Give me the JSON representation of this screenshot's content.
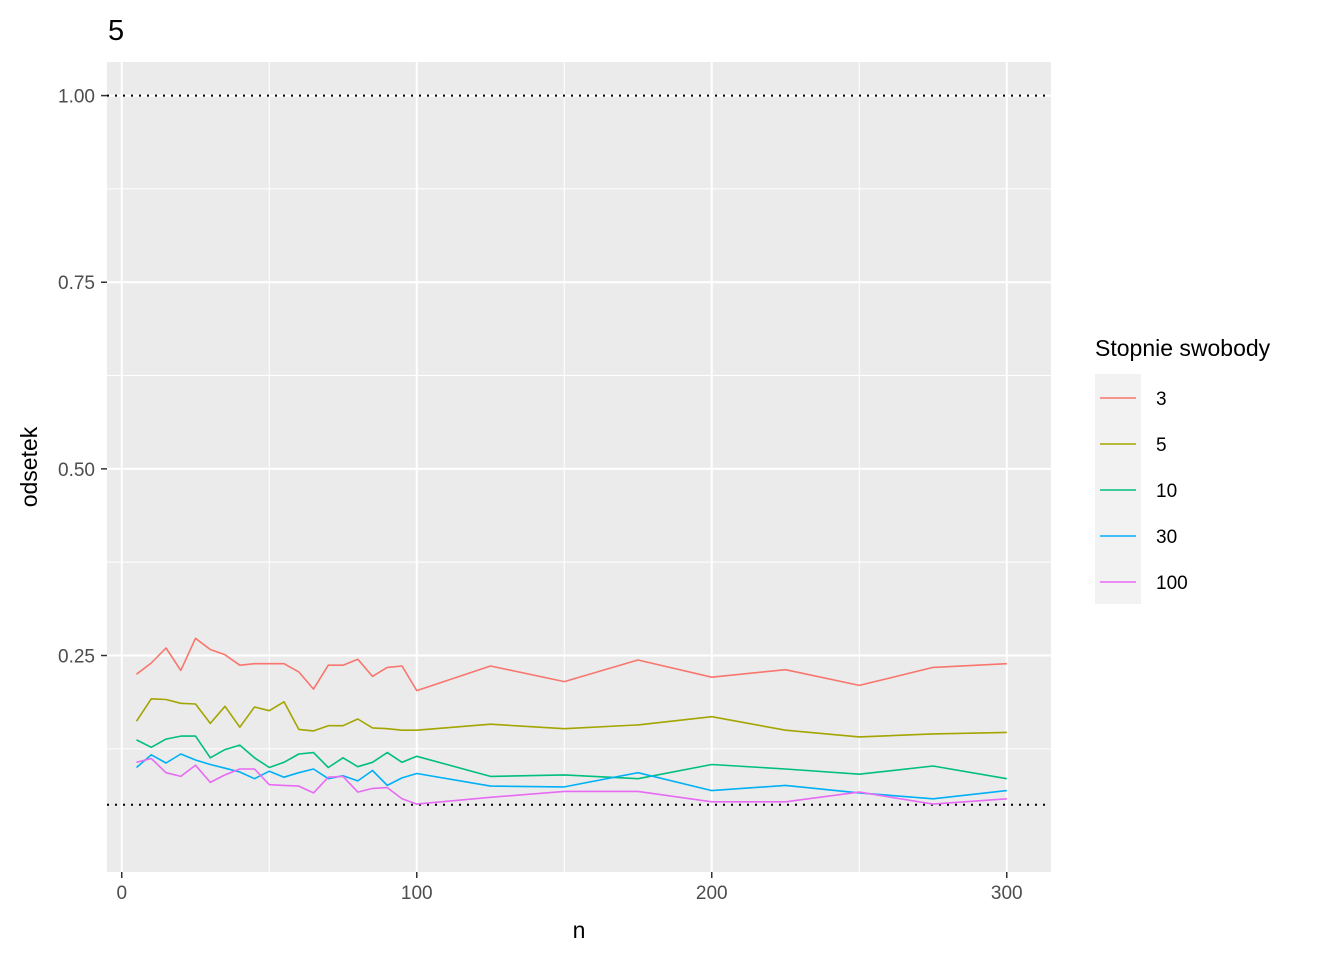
{
  "chart_data": {
    "type": "line",
    "title": "5",
    "xlabel": "n",
    "ylabel": "odsetek",
    "xlim": [
      -5,
      315
    ],
    "ylim": [
      -0.04,
      1.045
    ],
    "x_ticks": [
      0,
      100,
      200,
      300
    ],
    "x_tick_labels": [
      "0",
      "100",
      "200",
      "300"
    ],
    "y_ticks": [
      0.25,
      0.5,
      0.75,
      1.0
    ],
    "y_tick_labels": [
      "0.25",
      "0.50",
      "0.75",
      "1.00"
    ],
    "grid": true,
    "panel_background": "#ebebeb",
    "reference_lines": [
      1.0,
      0.05
    ],
    "legend": {
      "title": "Stopnie swobody",
      "position": "right"
    },
    "x": [
      5,
      10,
      15,
      20,
      25,
      30,
      35,
      40,
      45,
      50,
      55,
      60,
      65,
      70,
      75,
      80,
      85,
      90,
      95,
      100,
      125,
      150,
      175,
      200,
      225,
      250,
      275,
      300
    ],
    "series": [
      {
        "name": "3",
        "color": "#F8766D",
        "values": [
          0.225,
          0.24,
          0.26,
          0.23,
          0.273,
          0.258,
          0.251,
          0.237,
          0.239,
          0.239,
          0.239,
          0.228,
          0.205,
          0.237,
          0.237,
          0.245,
          0.222,
          0.234,
          0.236,
          0.203,
          0.236,
          0.215,
          0.244,
          0.221,
          0.231,
          0.21,
          0.234,
          0.239
        ]
      },
      {
        "name": "5",
        "color": "#A3A500",
        "values": [
          0.162,
          0.192,
          0.191,
          0.186,
          0.185,
          0.159,
          0.182,
          0.154,
          0.181,
          0.176,
          0.188,
          0.151,
          0.149,
          0.156,
          0.156,
          0.165,
          0.153,
          0.152,
          0.15,
          0.15,
          0.158,
          0.152,
          0.157,
          0.168,
          0.15,
          0.141,
          0.145,
          0.147
        ]
      },
      {
        "name": "10",
        "color": "#00BF7D",
        "values": [
          0.137,
          0.127,
          0.138,
          0.142,
          0.142,
          0.113,
          0.124,
          0.13,
          0.113,
          0.1,
          0.107,
          0.118,
          0.12,
          0.1,
          0.113,
          0.101,
          0.107,
          0.12,
          0.107,
          0.115,
          0.088,
          0.09,
          0.085,
          0.104,
          0.098,
          0.091,
          0.102,
          0.085
        ]
      },
      {
        "name": "30",
        "color": "#00B0F6",
        "values": [
          0.1,
          0.117,
          0.106,
          0.118,
          0.11,
          0.104,
          0.099,
          0.094,
          0.085,
          0.095,
          0.087,
          0.093,
          0.098,
          0.085,
          0.089,
          0.082,
          0.096,
          0.076,
          0.086,
          0.092,
          0.075,
          0.074,
          0.093,
          0.069,
          0.076,
          0.066,
          0.058,
          0.069
        ]
      },
      {
        "name": "100",
        "color": "#E76BF3",
        "values": [
          0.107,
          0.112,
          0.093,
          0.088,
          0.103,
          0.08,
          0.09,
          0.098,
          0.098,
          0.077,
          0.076,
          0.075,
          0.066,
          0.087,
          0.088,
          0.067,
          0.072,
          0.073,
          0.058,
          0.051,
          0.06,
          0.068,
          0.068,
          0.054,
          0.054,
          0.067,
          0.051,
          0.058
        ]
      }
    ]
  }
}
